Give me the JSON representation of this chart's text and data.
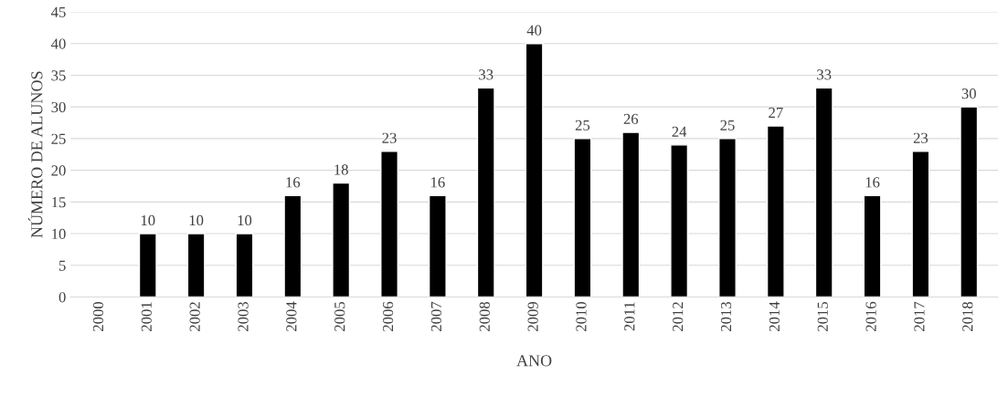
{
  "chart_data": {
    "type": "bar",
    "xlabel": "ANO",
    "ylabel": "NÚMERO DE ALUNOS",
    "categories": [
      "2000",
      "2001",
      "2002",
      "2003",
      "2004",
      "2005",
      "2006",
      "2007",
      "2008",
      "2009",
      "2010",
      "2011",
      "2012",
      "2013",
      "2014",
      "2015",
      "2016",
      "2017",
      "2018"
    ],
    "values": [
      null,
      10,
      10,
      10,
      16,
      18,
      23,
      16,
      33,
      40,
      25,
      26,
      24,
      25,
      27,
      33,
      16,
      23,
      30
    ],
    "value_labels": [
      null,
      "10",
      "10",
      "10",
      "16",
      "18",
      "23",
      "16",
      "33",
      "40",
      "25",
      "26",
      "24",
      "25",
      "27",
      "33",
      "16",
      "23",
      "30"
    ],
    "color": "#000000",
    "ylim": [
      0,
      45
    ],
    "yticks": [
      0,
      5,
      10,
      15,
      20,
      25,
      30,
      35,
      40,
      45
    ],
    "grid": "y",
    "legend": false
  }
}
